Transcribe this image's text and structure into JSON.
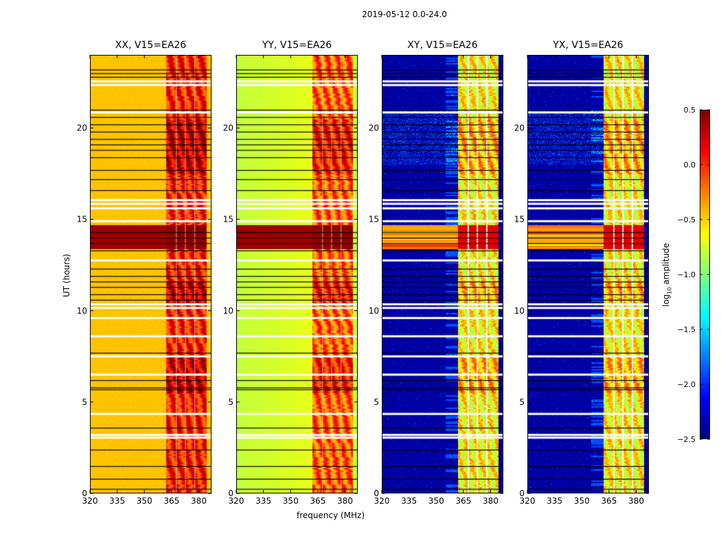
{
  "chart_data": {
    "type": "heatmap",
    "title": "2019-05-12 0.0-24.0",
    "xlabel": "frequency (MHz)",
    "ylabel": "UT (hours)",
    "xlim": [
      320,
      387
    ],
    "ylim": [
      0,
      24
    ],
    "xticks": [
      "320",
      "335",
      "350",
      "365",
      "380"
    ],
    "yticks": [
      "0",
      "5",
      "10",
      "15",
      "20"
    ],
    "colorbar": {
      "label_main": "log",
      "label_sub": "10",
      "label_rest": " amplitude",
      "clim": [
        -2.5,
        0.5
      ],
      "ticks": [
        "0.5",
        "0.0",
        "−0.5",
        "−1.0",
        "−1.5",
        "−2.0",
        "−2.5"
      ],
      "colormap": "jet"
    },
    "panels": [
      {
        "title": "XX, V15=EA26",
        "base_level": -0.45,
        "band_level": 0.05,
        "band_start_mhz": 362
      },
      {
        "title": "YY, V15=EA26",
        "base_level": -0.8,
        "band_level": -0.15,
        "band_start_mhz": 362
      },
      {
        "title": "XY, V15=EA26",
        "base_level": -2.4,
        "band_level": -0.6,
        "band_start_mhz": 362
      },
      {
        "title": "YX, V15=EA26",
        "base_level": -2.4,
        "band_level": -0.6,
        "band_start_mhz": 362
      }
    ],
    "flagged_hours_white": [
      22.55,
      22.35,
      20.85,
      16.05,
      15.85,
      15.6,
      14.9,
      12.75,
      10.35,
      10.15,
      9.6,
      8.6,
      7.5,
      6.5,
      4.35,
      3.2,
      3.05
    ],
    "flagged_hours_black": [
      23.2,
      23.0,
      22.8,
      21.0,
      20.6,
      20.2,
      19.8,
      19.4,
      19.1,
      18.8,
      18.4,
      17.7,
      17.2,
      16.6,
      14.3,
      14.0,
      13.7,
      13.3,
      12.3,
      11.9,
      11.6,
      11.3,
      10.9,
      10.6,
      7.7,
      6.2,
      5.8,
      5.7,
      3.6,
      2.4,
      1.5,
      0.8,
      0.25
    ],
    "high_rfi_hours": [
      13.4,
      14.7
    ]
  }
}
